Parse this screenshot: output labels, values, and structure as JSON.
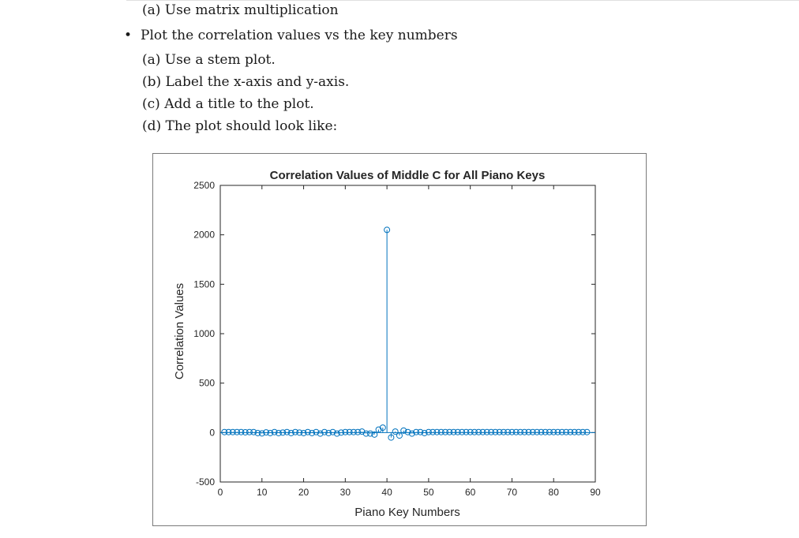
{
  "document": {
    "line_a_matrix": "(a)  Use matrix multiplication",
    "bullet_symbol": "•",
    "bullet_text": "Plot the correlation values vs the key numbers",
    "sub_a": "(a)  Use a stem plot.",
    "sub_b": "(b)  Label the x-axis and y-axis.",
    "sub_c": "(c)  Add a title to the plot.",
    "sub_d": "(d)  The plot should look like:"
  },
  "chart_data": {
    "type": "stem",
    "title": "Correlation Values of Middle C for All Piano Keys",
    "xlabel": "Piano Key Numbers",
    "ylabel": "Correlation Values",
    "xlim": [
      0,
      90
    ],
    "ylim": [
      -500,
      2500
    ],
    "xticks": [
      0,
      10,
      20,
      30,
      40,
      50,
      60,
      70,
      80,
      90
    ],
    "yticks": [
      -500,
      0,
      500,
      1000,
      1500,
      2000,
      2500
    ],
    "grid": false,
    "color": "#0072bd",
    "x": [
      1,
      2,
      3,
      4,
      5,
      6,
      7,
      8,
      9,
      10,
      11,
      12,
      13,
      14,
      15,
      16,
      17,
      18,
      19,
      20,
      21,
      22,
      23,
      24,
      25,
      26,
      27,
      28,
      29,
      30,
      31,
      32,
      33,
      34,
      35,
      36,
      37,
      38,
      39,
      40,
      41,
      42,
      43,
      44,
      45,
      46,
      47,
      48,
      49,
      50,
      51,
      52,
      53,
      54,
      55,
      56,
      57,
      58,
      59,
      60,
      61,
      62,
      63,
      64,
      65,
      66,
      67,
      68,
      69,
      70,
      71,
      72,
      73,
      74,
      75,
      76,
      77,
      78,
      79,
      80,
      81,
      82,
      83,
      84,
      85,
      86,
      87,
      88
    ],
    "y": [
      5,
      5,
      5,
      5,
      5,
      3,
      5,
      5,
      -5,
      -8,
      2,
      -5,
      5,
      -5,
      0,
      5,
      -5,
      5,
      0,
      -5,
      5,
      -5,
      5,
      -10,
      5,
      -5,
      5,
      -10,
      0,
      5,
      5,
      5,
      5,
      10,
      -10,
      -10,
      -20,
      30,
      50,
      2050,
      -50,
      10,
      -30,
      20,
      5,
      -10,
      5,
      5,
      -5,
      5,
      5,
      5,
      5,
      5,
      5,
      5,
      5,
      5,
      5,
      5,
      5,
      5,
      5,
      5,
      5,
      5,
      5,
      5,
      5,
      5,
      5,
      5,
      5,
      5,
      5,
      5,
      5,
      5,
      5,
      5,
      5,
      5,
      5,
      5,
      5,
      5,
      5,
      5
    ]
  }
}
